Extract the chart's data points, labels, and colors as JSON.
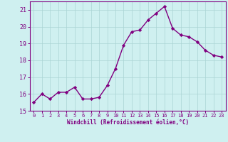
{
  "x": [
    0,
    1,
    2,
    3,
    4,
    5,
    6,
    7,
    8,
    9,
    10,
    11,
    12,
    13,
    14,
    15,
    16,
    17,
    18,
    19,
    20,
    21,
    22,
    23
  ],
  "y": [
    15.5,
    16.0,
    15.7,
    16.1,
    16.1,
    16.4,
    15.7,
    15.7,
    15.8,
    16.5,
    17.5,
    18.9,
    19.7,
    19.8,
    20.4,
    20.8,
    21.2,
    19.9,
    19.5,
    19.4,
    19.1,
    18.6,
    18.3,
    18.2
  ],
  "line_color": "#800080",
  "marker": "D",
  "marker_size": 2.2,
  "bg_color": "#cff0f0",
  "grid_color": "#aad4d4",
  "xlabel": "Windchill (Refroidissement éolien,°C)",
  "xlabel_color": "#800080",
  "tick_color": "#800080",
  "spine_color": "#800080",
  "ylim": [
    15,
    21.5
  ],
  "xlim": [
    -0.5,
    23.5
  ],
  "yticks": [
    15,
    16,
    17,
    18,
    19,
    20,
    21
  ],
  "xticks": [
    0,
    1,
    2,
    3,
    4,
    5,
    6,
    7,
    8,
    9,
    10,
    11,
    12,
    13,
    14,
    15,
    16,
    17,
    18,
    19,
    20,
    21,
    22,
    23
  ],
  "linewidth": 1.0,
  "figsize": [
    3.2,
    2.0
  ],
  "dpi": 100
}
